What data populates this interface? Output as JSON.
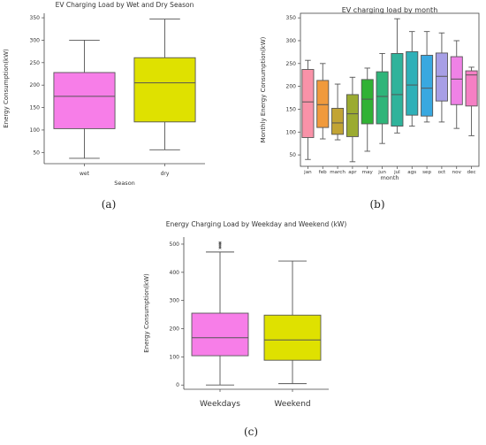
{
  "chart_data": [
    {
      "type": "box",
      "title": "EV Charging Load by Wet and Dry Season",
      "xlabel": "Season",
      "ylabel": "Energy Consumption(kW)",
      "ylim": [
        25,
        360
      ],
      "yticks": [
        50,
        100,
        150,
        200,
        250,
        300,
        350
      ],
      "categories": [
        "wet",
        "dry"
      ],
      "boxes": [
        {
          "min": 37,
          "q1": 103,
          "median": 175,
          "q3": 228,
          "max": 300,
          "color": "#f77ee8"
        },
        {
          "min": 56,
          "q1": 118,
          "median": 205,
          "q3": 261,
          "max": 347,
          "color": "#dfe100"
        }
      ],
      "caption": "(a)"
    },
    {
      "type": "box",
      "title": "EV charging load by month",
      "xlabel": "month",
      "ylabel": "Monthly Energy Consumption(kW)",
      "ylim": [
        25,
        360
      ],
      "yticks": [
        50,
        100,
        150,
        200,
        250,
        300,
        350
      ],
      "categories": [
        "jan",
        "feb",
        "march",
        "apr",
        "may",
        "jun",
        "jul",
        "ags",
        "sep",
        "oct",
        "nov",
        "dec"
      ],
      "boxes": [
        {
          "min": 40,
          "q1": 88,
          "median": 166,
          "q3": 237,
          "max": 257,
          "color": "#f992a8"
        },
        {
          "min": 85,
          "q1": 110,
          "median": 160,
          "q3": 213,
          "max": 250,
          "color": "#f09a3c"
        },
        {
          "min": 83,
          "q1": 95,
          "median": 120,
          "q3": 152,
          "max": 205,
          "color": "#c2a435"
        },
        {
          "min": 35,
          "q1": 90,
          "median": 140,
          "q3": 182,
          "max": 220,
          "color": "#9bab31"
        },
        {
          "min": 58,
          "q1": 118,
          "median": 172,
          "q3": 215,
          "max": 240,
          "color": "#30b234"
        },
        {
          "min": 75,
          "q1": 118,
          "median": 178,
          "q3": 232,
          "max": 272,
          "color": "#2fb57a"
        },
        {
          "min": 98,
          "q1": 113,
          "median": 182,
          "q3": 272,
          "max": 348,
          "color": "#2fb39b"
        },
        {
          "min": 113,
          "q1": 137,
          "median": 203,
          "q3": 276,
          "max": 320,
          "color": "#2fb0b8"
        },
        {
          "min": 122,
          "q1": 135,
          "median": 196,
          "q3": 268,
          "max": 320,
          "color": "#39a8e0"
        },
        {
          "min": 122,
          "q1": 168,
          "median": 222,
          "q3": 273,
          "max": 317,
          "color": "#a79fe6"
        },
        {
          "min": 108,
          "q1": 160,
          "median": 216,
          "q3": 265,
          "max": 300,
          "color": "#ef82e6"
        },
        {
          "min": 92,
          "q1": 157,
          "median": 225,
          "q3": 234,
          "max": 242,
          "color": "#f57fc4"
        }
      ],
      "caption": "(b)"
    },
    {
      "type": "box",
      "title": "Energy Charging Load by Weekday and Weekend (kW)",
      "xlabel": "",
      "ylabel": "Energy Consumption(kW)",
      "ylim": [
        -15,
        525
      ],
      "yticks": [
        0,
        100,
        200,
        300,
        400,
        500
      ],
      "categories": [
        "Weekdays",
        "Weekend"
      ],
      "boxes": [
        {
          "min": 0,
          "q1": 104,
          "median": 168,
          "q3": 255,
          "max": 472,
          "color": "#f77ee8",
          "outliers": [
            487,
            493,
            500,
            505
          ]
        },
        {
          "min": 5,
          "q1": 88,
          "median": 160,
          "q3": 248,
          "max": 440,
          "color": "#dfe100",
          "outliers": []
        }
      ],
      "caption": "(c)"
    }
  ]
}
